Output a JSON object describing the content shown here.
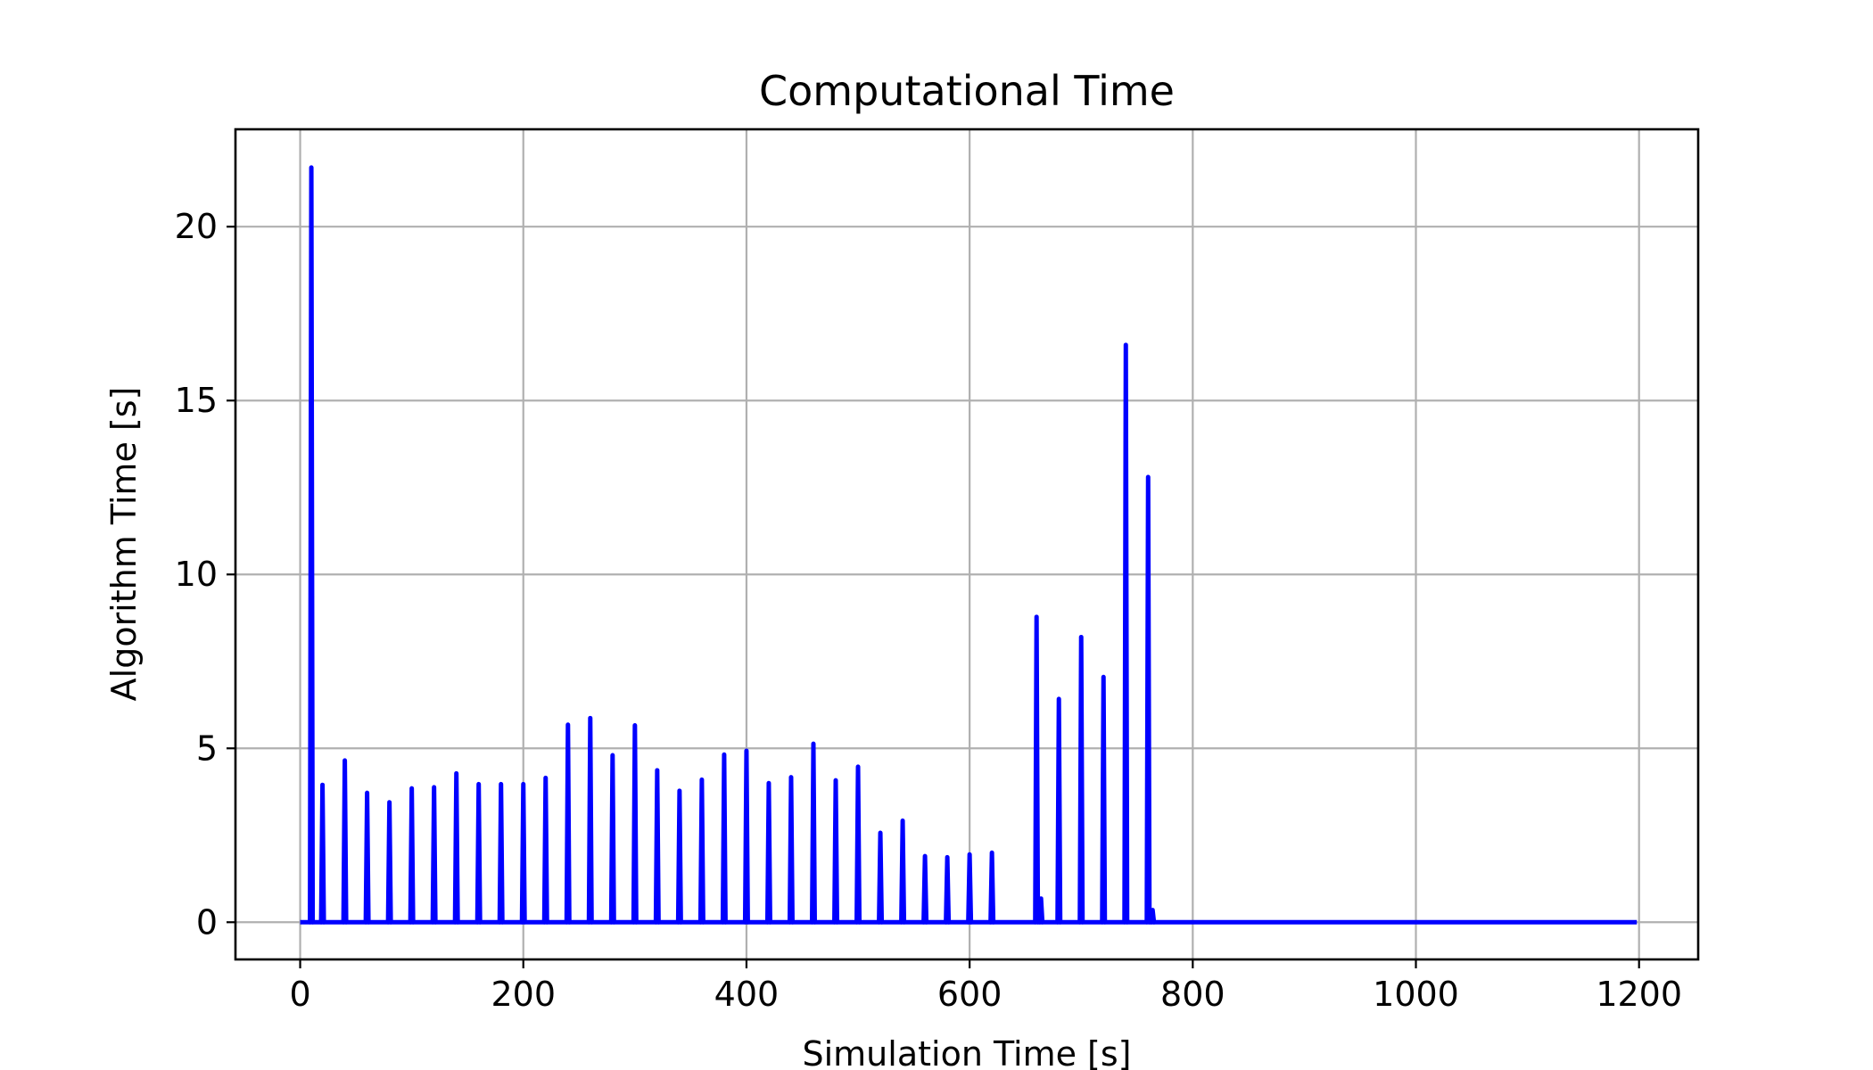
{
  "chart_data": {
    "type": "line",
    "title": "Computational Time",
    "xlabel": "Simulation Time [s]",
    "ylabel": "Algorithm Time [s]",
    "xlim": [
      -58,
      1253
    ],
    "ylim": [
      -1.07,
      22.8
    ],
    "xticks": [
      0,
      200,
      400,
      600,
      800,
      1000,
      1200
    ],
    "yticks": [
      0,
      5,
      10,
      15,
      20
    ],
    "grid": true,
    "line_color": "#0000ff",
    "x_start": 0,
    "x_end": 1198,
    "spikes": [
      {
        "x": 10,
        "y": 21.7
      },
      {
        "x": 20,
        "y": 3.95
      },
      {
        "x": 40,
        "y": 4.65
      },
      {
        "x": 60,
        "y": 3.72
      },
      {
        "x": 80,
        "y": 3.45
      },
      {
        "x": 100,
        "y": 3.85
      },
      {
        "x": 120,
        "y": 3.88
      },
      {
        "x": 140,
        "y": 4.28
      },
      {
        "x": 160,
        "y": 3.97
      },
      {
        "x": 180,
        "y": 3.97
      },
      {
        "x": 200,
        "y": 3.97
      },
      {
        "x": 220,
        "y": 4.15
      },
      {
        "x": 240,
        "y": 5.68
      },
      {
        "x": 260,
        "y": 5.87
      },
      {
        "x": 280,
        "y": 4.8
      },
      {
        "x": 300,
        "y": 5.66
      },
      {
        "x": 320,
        "y": 4.37
      },
      {
        "x": 340,
        "y": 3.78
      },
      {
        "x": 360,
        "y": 4.1
      },
      {
        "x": 380,
        "y": 4.82
      },
      {
        "x": 400,
        "y": 4.93
      },
      {
        "x": 420,
        "y": 4.0
      },
      {
        "x": 440,
        "y": 4.17
      },
      {
        "x": 460,
        "y": 5.13
      },
      {
        "x": 480,
        "y": 4.08
      },
      {
        "x": 500,
        "y": 4.47
      },
      {
        "x": 520,
        "y": 2.57
      },
      {
        "x": 540,
        "y": 2.92
      },
      {
        "x": 560,
        "y": 1.9
      },
      {
        "x": 580,
        "y": 1.87
      },
      {
        "x": 600,
        "y": 1.95
      },
      {
        "x": 620,
        "y": 2.0
      },
      {
        "x": 660,
        "y": 8.78
      },
      {
        "x": 664,
        "y": 0.68
      },
      {
        "x": 680,
        "y": 6.42
      },
      {
        "x": 700,
        "y": 8.2
      },
      {
        "x": 720,
        "y": 7.05
      },
      {
        "x": 740,
        "y": 16.6
      },
      {
        "x": 760,
        "y": 12.8
      },
      {
        "x": 764,
        "y": 0.35
      }
    ]
  }
}
